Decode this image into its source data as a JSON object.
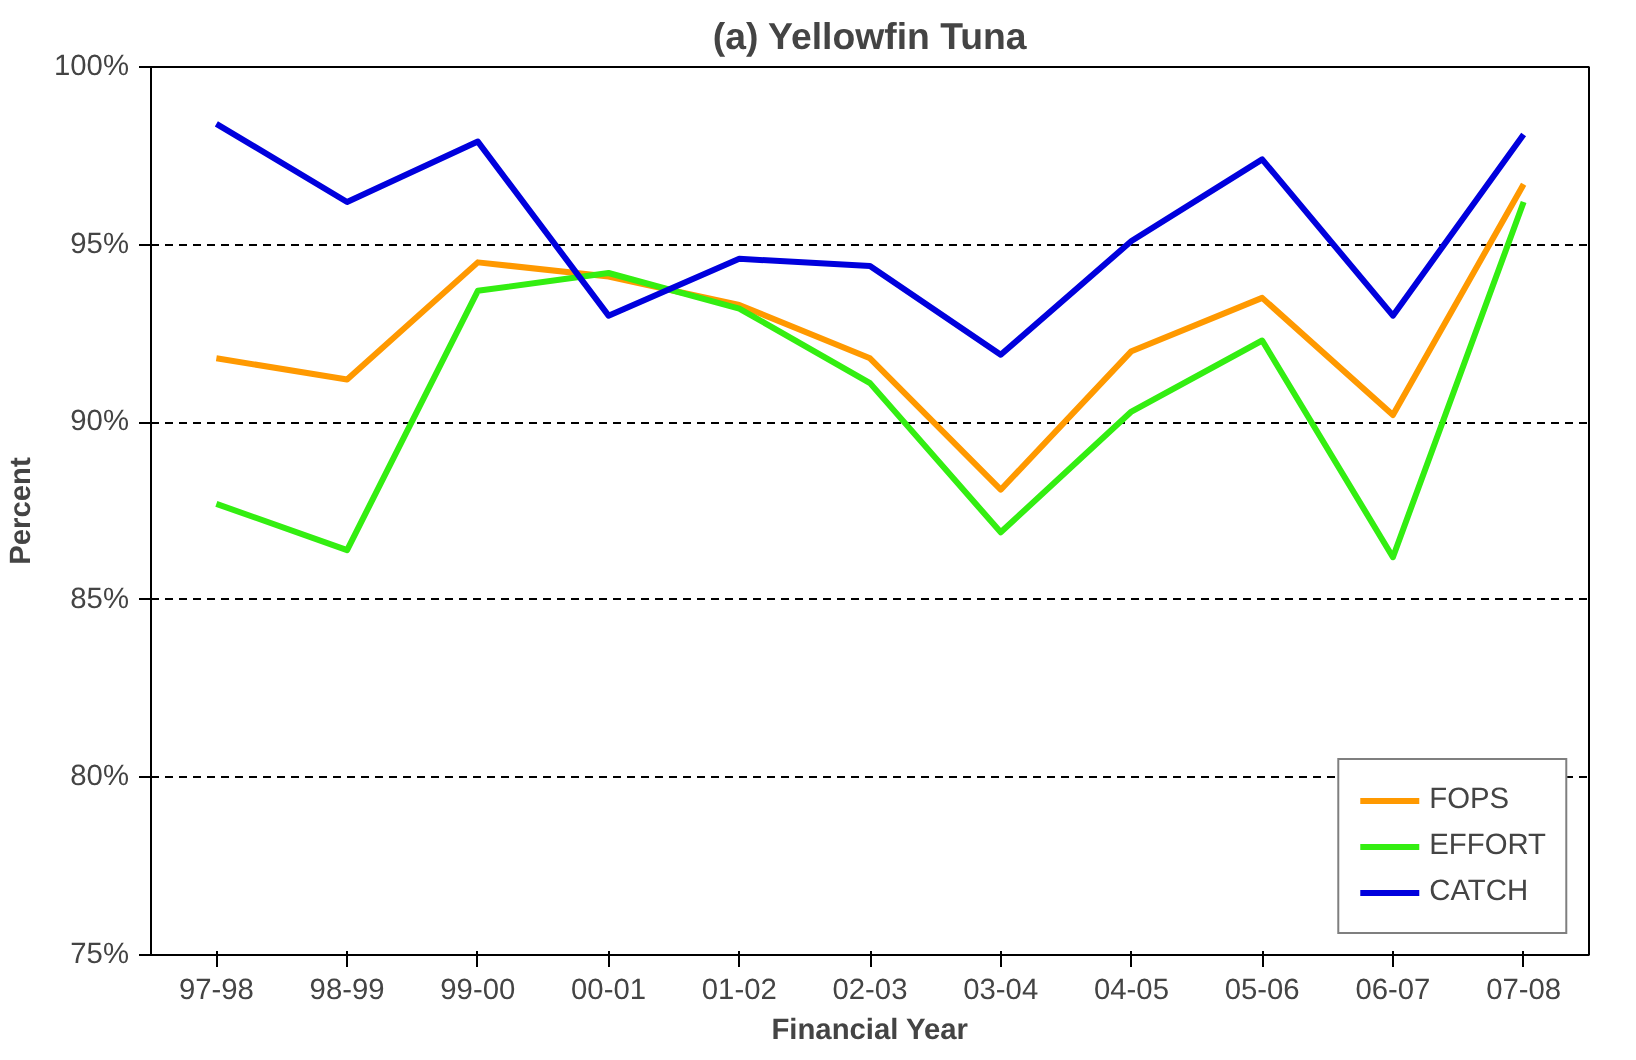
{
  "chart_data": {
    "type": "line",
    "title": "(a) Yellowfin Tuna",
    "xlabel": "Financial Year",
    "ylabel": "Percent",
    "categories": [
      "97-98",
      "98-99",
      "99-00",
      "00-01",
      "01-02",
      "02-03",
      "03-04",
      "04-05",
      "05-06",
      "06-07",
      "07-08"
    ],
    "series": [
      {
        "name": "FOPS",
        "color": "#ff9900",
        "values": [
          91.8,
          91.2,
          94.5,
          94.1,
          93.3,
          91.8,
          88.1,
          92.0,
          93.5,
          90.2,
          96.7
        ]
      },
      {
        "name": "EFFORT",
        "color": "#33ee11",
        "values": [
          87.7,
          86.4,
          93.7,
          94.2,
          93.2,
          91.1,
          86.9,
          90.3,
          92.3,
          86.2,
          96.2
        ]
      },
      {
        "name": "CATCH",
        "color": "#0000dd",
        "values": [
          98.4,
          96.2,
          97.9,
          93.0,
          94.6,
          94.4,
          91.9,
          95.1,
          97.4,
          93.0,
          98.1
        ]
      }
    ],
    "ylim": [
      75,
      100
    ],
    "yticks": [
      {
        "value": 75,
        "label": "75%"
      },
      {
        "value": 80,
        "label": "80%"
      },
      {
        "value": 85,
        "label": "85%"
      },
      {
        "value": 90,
        "label": "90%"
      },
      {
        "value": 95,
        "label": "95%"
      },
      {
        "value": 100,
        "label": "100%"
      }
    ],
    "grid": "y",
    "legend": "bottom right",
    "marker": "none",
    "line_style": "solid"
  }
}
